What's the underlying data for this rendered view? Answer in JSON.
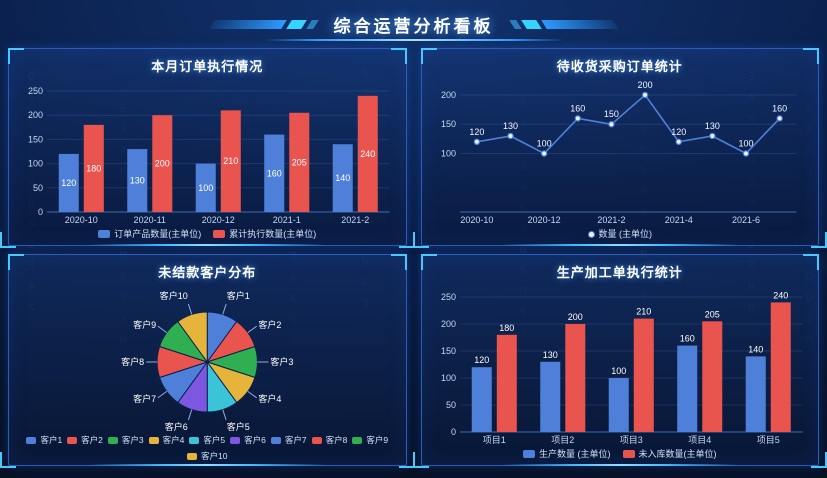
{
  "header": {
    "title": "综合运营分析看板"
  },
  "background": {
    "decor_chars": "ONSEM35A9KXGR"
  },
  "chart_data": [
    {
      "id": "orders",
      "type": "bar",
      "title": "本月订单执行情况",
      "categories": [
        "2020-10",
        "2020-11",
        "2020-12",
        "2021-1",
        "2021-2"
      ],
      "series": [
        {
          "name": "订单产品数量(主单位)",
          "color": "#4f80d9",
          "values": [
            120,
            130,
            100,
            160,
            140
          ]
        },
        {
          "name": "累计执行数量(主单位)",
          "color": "#e9544e",
          "values": [
            180,
            200,
            210,
            205,
            240
          ]
        }
      ],
      "ylim": [
        0,
        250
      ],
      "yticks": [
        0,
        50,
        100,
        150,
        200,
        250
      ],
      "value_labels": "inside",
      "legend_position": "bottom"
    },
    {
      "id": "purchase",
      "type": "line",
      "title": "待收货采购订单统计",
      "categories": [
        "2020-10",
        "2020-11",
        "2020-12",
        "2021-1",
        "2021-2",
        "2021-3",
        "2021-4",
        "2021-5",
        "2021-6",
        "2021-7"
      ],
      "x_tick_every": 2,
      "x_ticks_shown": [
        "2020-10",
        "2020-12",
        "2021-2",
        "2021-4",
        "2021-6"
      ],
      "series": [
        {
          "name": "数量 (主单位)",
          "color": "#4f80d9",
          "values": [
            120,
            130,
            100,
            160,
            150,
            200,
            120,
            130,
            100,
            160
          ]
        }
      ],
      "ylim": [
        0,
        200
      ],
      "yticks": [
        100,
        150,
        200
      ],
      "value_labels": "above",
      "legend_position": "bottom"
    },
    {
      "id": "customers",
      "type": "pie",
      "title": "未结款客户分布",
      "labels": [
        "客户1",
        "客户2",
        "客户3",
        "客户4",
        "客户5",
        "客户6",
        "客户7",
        "客户8",
        "客户9",
        "客户10"
      ],
      "values": [
        10,
        10,
        10,
        10,
        10,
        10,
        10,
        10,
        10,
        10
      ],
      "colors": [
        "#4f80d9",
        "#e9544e",
        "#2fae52",
        "#e7b43b",
        "#3bc3d8",
        "#7e57e0",
        "#4f80d9",
        "#e9544e",
        "#2fae52",
        "#e7b43b"
      ],
      "legend_position": "bottom"
    },
    {
      "id": "production",
      "type": "bar",
      "title": "生产加工单执行统计",
      "categories": [
        "项目1",
        "项目2",
        "项目3",
        "项目4",
        "项目5"
      ],
      "series": [
        {
          "name": "生产数量 (主单位)",
          "color": "#4f80d9",
          "values": [
            120,
            130,
            100,
            160,
            140
          ]
        },
        {
          "name": "未入库数量(主单位)",
          "color": "#e9544e",
          "values": [
            180,
            200,
            210,
            205,
            240
          ]
        }
      ],
      "ylim": [
        0,
        250
      ],
      "yticks": [
        0,
        50,
        100,
        150,
        200,
        250
      ],
      "value_labels": "above",
      "legend_position": "bottom"
    }
  ]
}
